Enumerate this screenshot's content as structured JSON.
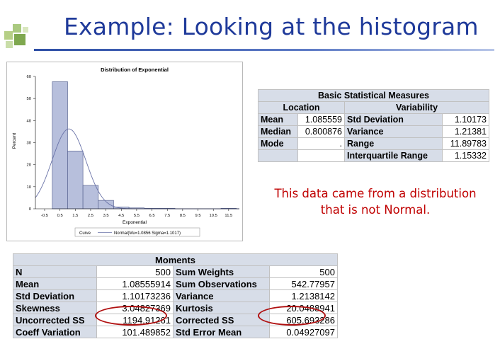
{
  "slide": {
    "title": "Example: Looking at the histogram",
    "note_line1": "This data came from a distribution",
    "note_line2": "that is not Normal."
  },
  "chart_data": {
    "type": "bar",
    "title": "Distribution of Exponential",
    "xlabel": "Exponential",
    "ylabel": "Percent",
    "bin_width": 1,
    "bins": [
      {
        "left": 0,
        "right": 1,
        "percent": 57.6
      },
      {
        "left": 1,
        "right": 2,
        "percent": 26.2
      },
      {
        "left": 2,
        "right": 3,
        "percent": 10.6
      },
      {
        "left": 3,
        "right": 4,
        "percent": 3.8
      },
      {
        "left": 4,
        "right": 5,
        "percent": 0.8
      },
      {
        "left": 5,
        "right": 6,
        "percent": 0.4
      },
      {
        "left": 6,
        "right": 7,
        "percent": 0.2
      },
      {
        "left": 7,
        "right": 8,
        "percent": 0.2
      },
      {
        "left": 8,
        "right": 9,
        "percent": 0.0
      },
      {
        "left": 9,
        "right": 10,
        "percent": 0.0
      },
      {
        "left": 10,
        "right": 11,
        "percent": 0.0
      },
      {
        "left": 11,
        "right": 12,
        "percent": 0.2
      }
    ],
    "xticks": [
      "-0.5",
      "0.5",
      "1.5",
      "2.5",
      "3.5",
      "4.5",
      "5.5",
      "6.5",
      "7.5",
      "8.5",
      "9.5",
      "10.5",
      "11.5"
    ],
    "xtick_values": [
      -0.5,
      0.5,
      1.5,
      2.5,
      3.5,
      4.5,
      5.5,
      6.5,
      7.5,
      8.5,
      9.5,
      10.5,
      11.5
    ],
    "yticks": [
      "0",
      "10",
      "20",
      "30",
      "40",
      "50",
      "60"
    ],
    "ytick_values": [
      0,
      10,
      20,
      30,
      40,
      50,
      60
    ],
    "xlim": [
      -1.1,
      12.2
    ],
    "ylim": [
      0,
      60
    ],
    "normal_curve": {
      "mu": 1.0856,
      "sigma": 1.1017
    },
    "legend_curve_label": "Curve",
    "legend_text": "Normal(Mu=1.0856 Sigma=1.1017)",
    "legend_position": "bottom",
    "colors": {
      "bar_fill": "#b7bfdc",
      "bar_stroke": "#5a6592",
      "curve": "#6a73a8"
    }
  },
  "basic_stats": {
    "caption": "Basic Statistical Measures",
    "location_header": "Location",
    "variability_header": "Variability",
    "rows": [
      {
        "loc_label": "Mean",
        "loc_value": "1.085559",
        "var_label": "Std Deviation",
        "var_value": "1.10173"
      },
      {
        "loc_label": "Median",
        "loc_value": "0.800876",
        "var_label": "Variance",
        "var_value": "1.21381"
      },
      {
        "loc_label": "Mode",
        "loc_value": ".",
        "var_label": "Range",
        "var_value": "11.89783"
      },
      {
        "loc_label": "",
        "loc_value": "",
        "var_label": "Interquartile Range",
        "var_value": "1.15332"
      }
    ]
  },
  "moments": {
    "caption": "Moments",
    "rows": [
      {
        "l1": "N",
        "v1": "500",
        "l2": "Sum Weights",
        "v2": "500"
      },
      {
        "l1": "Mean",
        "v1": "1.08555914",
        "l2": "Sum Observations",
        "v2": "542.77957"
      },
      {
        "l1": "Std Deviation",
        "v1": "1.10173236",
        "l2": "Variance",
        "v2": "1.2138142"
      },
      {
        "l1": "Skewness",
        "v1": "3.04827369",
        "l2": "Kurtosis",
        "v2": "20.0488941"
      },
      {
        "l1": "Uncorrected SS",
        "v1": "1194.91261",
        "l2": "Corrected SS",
        "v2": "605.693286"
      },
      {
        "l1": "Coeff Variation",
        "v1": "101.489852",
        "l2": "Std Error Mean",
        "v2": "0.04927097"
      }
    ]
  },
  "colors": {
    "title": "#1f3a9a",
    "note": "#c00000",
    "table_header_bg": "#d7dde8",
    "highlight_ellipse": "#b01010"
  }
}
